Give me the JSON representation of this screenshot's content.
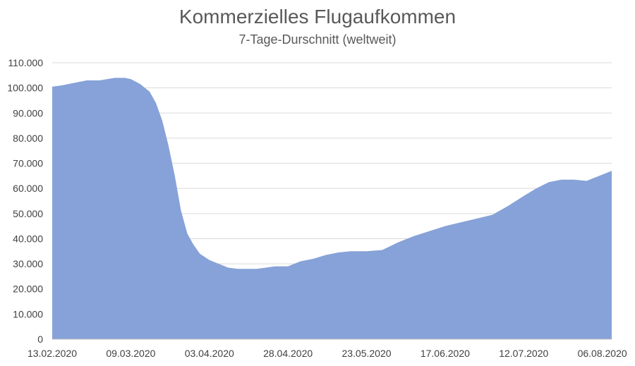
{
  "chart_data": {
    "type": "area",
    "title": "Kommerzielles Flugaufkommen",
    "subtitle": "7-Tage-Durschnitt (weltweit)",
    "xlabel": "",
    "ylabel": "",
    "ylim": [
      0,
      110000
    ],
    "y_ticks": [
      0,
      10000,
      20000,
      30000,
      40000,
      50000,
      60000,
      70000,
      80000,
      90000,
      100000,
      110000
    ],
    "y_tick_labels": [
      "0",
      "10.000",
      "20.000",
      "30.000",
      "40.000",
      "50.000",
      "60.000",
      "70.000",
      "80.000",
      "90.000",
      "100.000",
      "110.000"
    ],
    "x_tick_labels": [
      "13.02.2020",
      "09.03.2020",
      "03.04.2020",
      "28.04.2020",
      "23.05.2020",
      "17.06.2020",
      "12.07.2020",
      "06.08.2020"
    ],
    "grid": true,
    "legend": "none",
    "color": "#86A2D8",
    "x": [
      "13.02.2020",
      "16.02.2020",
      "20.02.2020",
      "24.02.2020",
      "28.02.2020",
      "04.03.2020",
      "07.03.2020",
      "09.03.2020",
      "12.03.2020",
      "15.03.2020",
      "17.03.2020",
      "19.03.2020",
      "21.03.2020",
      "23.03.2020",
      "25.03.2020",
      "27.03.2020",
      "29.03.2020",
      "31.03.2020",
      "03.04.2020",
      "06.04.2020",
      "09.04.2020",
      "12.04.2020",
      "15.04.2020",
      "18.04.2020",
      "21.04.2020",
      "24.04.2020",
      "28.04.2020",
      "02.05.2020",
      "06.05.2020",
      "10.05.2020",
      "14.05.2020",
      "18.05.2020",
      "23.05.2020",
      "28.05.2020",
      "02.06.2020",
      "07.06.2020",
      "12.06.2020",
      "17.06.2020",
      "22.06.2020",
      "27.06.2020",
      "02.07.2020",
      "07.07.2020",
      "12.07.2020",
      "16.07.2020",
      "20.07.2020",
      "24.07.2020",
      "28.07.2020",
      "01.08.2020",
      "06.08.2020",
      "09.08.2020"
    ],
    "values": [
      100500,
      101000,
      102000,
      103000,
      103000,
      104000,
      104000,
      103500,
      101500,
      98500,
      94000,
      87000,
      77000,
      65000,
      51000,
      42000,
      37500,
      34000,
      31500,
      30000,
      28500,
      28000,
      28000,
      28000,
      28500,
      29000,
      29000,
      31000,
      32000,
      33500,
      34500,
      35000,
      35000,
      35500,
      38500,
      41000,
      43000,
      45000,
      46500,
      48000,
      49500,
      53000,
      57000,
      60000,
      62500,
      63500,
      63500,
      63000,
      65500,
      67000
    ]
  }
}
